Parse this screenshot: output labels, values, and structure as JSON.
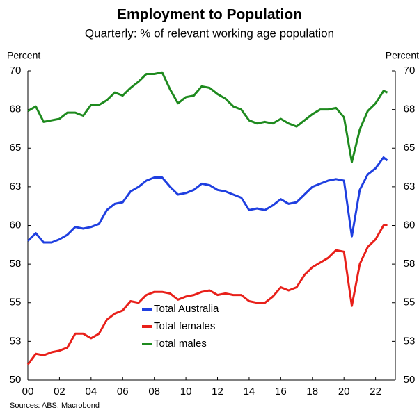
{
  "chart_data": {
    "type": "line",
    "title": "Employment to Population",
    "subtitle": "Quarterly: % of relevant working age population",
    "y_label": "Percent",
    "y2_label": "Percent",
    "source": "Sources: ABS: Macrobond",
    "x": [
      2000,
      2000.5,
      2001,
      2001.5,
      2002,
      2002.5,
      2003,
      2003.5,
      2004,
      2004.5,
      2005,
      2005.5,
      2006,
      2006.5,
      2007,
      2007.5,
      2008,
      2008.5,
      2009,
      2009.5,
      2010,
      2010.5,
      2011,
      2011.5,
      2012,
      2012.5,
      2013,
      2013.5,
      2014,
      2014.5,
      2015,
      2015.5,
      2016,
      2016.5,
      2017,
      2017.5,
      2018,
      2018.5,
      2019,
      2019.5,
      2020,
      2020.5,
      2021,
      2021.5,
      2022,
      2022.5,
      2022.75
    ],
    "xlim": [
      2000,
      2023.25
    ],
    "xticks": [
      {
        "value": 2000,
        "label": "00"
      },
      {
        "value": 2002,
        "label": "02"
      },
      {
        "value": 2004,
        "label": "04"
      },
      {
        "value": 2006,
        "label": "06"
      },
      {
        "value": 2008,
        "label": "08"
      },
      {
        "value": 2010,
        "label": "10"
      },
      {
        "value": 2012,
        "label": "12"
      },
      {
        "value": 2014,
        "label": "14"
      },
      {
        "value": 2016,
        "label": "16"
      },
      {
        "value": 2018,
        "label": "18"
      },
      {
        "value": 2020,
        "label": "20"
      },
      {
        "value": 2022,
        "label": "22"
      }
    ],
    "ylim": [
      50,
      70
    ],
    "yticks": [
      50,
      {
        "value": 52.5,
        "label": "53"
      },
      55,
      {
        "value": 57.5,
        "label": "58"
      },
      60,
      {
        "value": 62.5,
        "label": "63"
      },
      65,
      {
        "value": 67.5,
        "label": "68"
      },
      70
    ],
    "grid": false,
    "series": [
      {
        "name": "Total Australia",
        "color": "#1f3fe0",
        "values": [
          59.0,
          59.5,
          58.9,
          58.9,
          59.1,
          59.4,
          59.9,
          59.8,
          59.9,
          60.1,
          61.0,
          61.4,
          61.5,
          62.2,
          62.5,
          62.9,
          63.1,
          63.1,
          62.5,
          62.0,
          62.1,
          62.3,
          62.7,
          62.6,
          62.3,
          62.2,
          62.0,
          61.8,
          61.0,
          61.1,
          61.0,
          61.3,
          61.7,
          61.4,
          61.5,
          62.0,
          62.5,
          62.7,
          62.9,
          63.0,
          62.9,
          59.3,
          62.3,
          63.3,
          63.7,
          64.4,
          64.2
        ]
      },
      {
        "name": "Total females",
        "color": "#e8201a",
        "values": [
          51.0,
          51.7,
          51.6,
          51.8,
          51.9,
          52.1,
          53.0,
          53.0,
          52.7,
          53.0,
          53.9,
          54.3,
          54.5,
          55.1,
          55.0,
          55.5,
          55.7,
          55.7,
          55.6,
          55.2,
          55.4,
          55.5,
          55.7,
          55.8,
          55.5,
          55.6,
          55.5,
          55.5,
          55.1,
          55.0,
          55.0,
          55.4,
          56.0,
          55.8,
          56.0,
          56.8,
          57.3,
          57.6,
          57.9,
          58.4,
          58.3,
          54.8,
          57.5,
          58.6,
          59.1,
          60.0,
          60.0
        ]
      },
      {
        "name": "Total males",
        "color": "#1e8a1e",
        "values": [
          67.4,
          67.7,
          66.7,
          66.8,
          66.9,
          67.3,
          67.3,
          67.1,
          67.8,
          67.8,
          68.1,
          68.6,
          68.4,
          68.9,
          69.3,
          69.8,
          69.8,
          69.9,
          68.8,
          67.9,
          68.3,
          68.4,
          69.0,
          68.9,
          68.5,
          68.2,
          67.7,
          67.5,
          66.8,
          66.6,
          66.7,
          66.6,
          66.9,
          66.6,
          66.4,
          66.8,
          67.2,
          67.5,
          67.5,
          67.6,
          67.0,
          64.1,
          66.2,
          67.4,
          67.9,
          68.7,
          68.6
        ]
      }
    ]
  }
}
